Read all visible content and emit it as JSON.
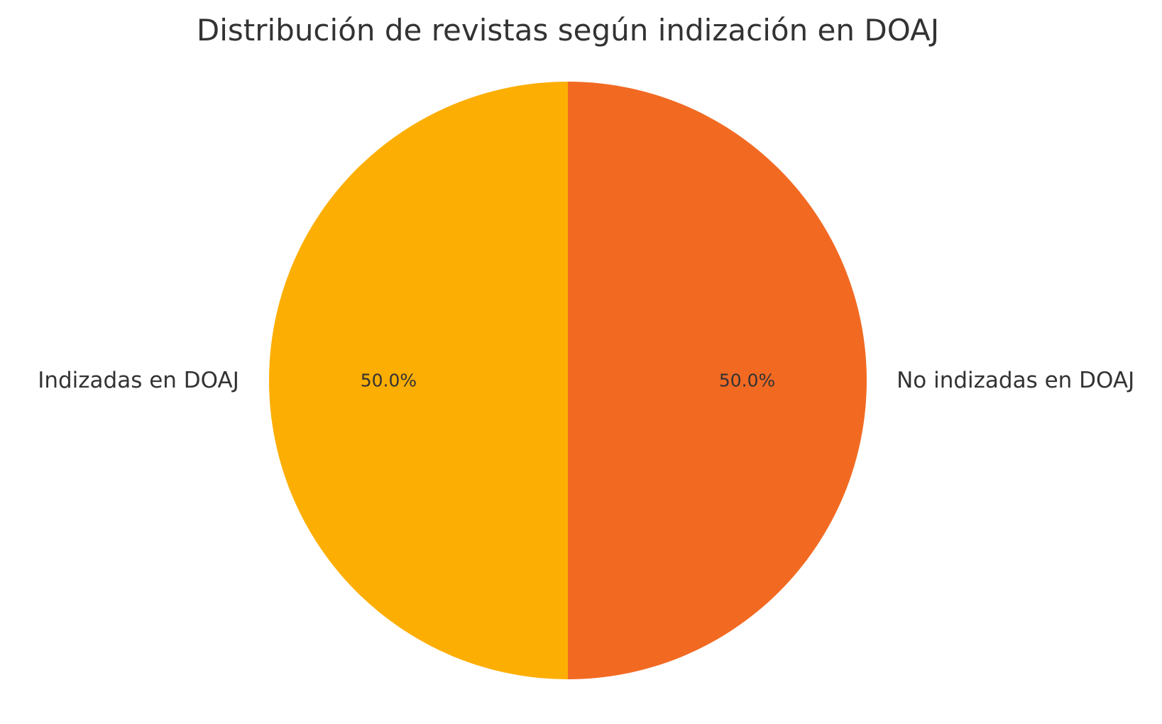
{
  "chart_data": {
    "type": "pie",
    "title": "Distribución de revistas según indización en DOAJ",
    "slices": [
      {
        "label": "Indizadas en DOAJ",
        "value": 50.0,
        "pct_label": "50.0%",
        "color": "#FDAE03"
      },
      {
        "label": "No indizadas en DOAJ",
        "value": 50.0,
        "pct_label": "50.0%",
        "color": "#F26A22"
      }
    ],
    "start_direction": "top",
    "rotation": "counterclockwise"
  }
}
